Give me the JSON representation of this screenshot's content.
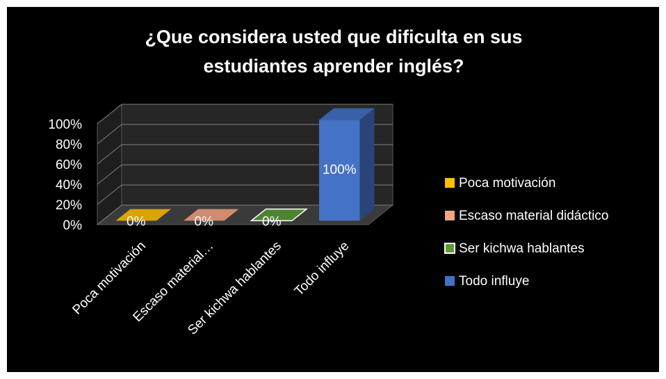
{
  "chart_data": {
    "type": "bar3d",
    "title": "¿Que considera usted que dificulta en sus estudiantes aprender inglés?",
    "categories": [
      "Poca motivación",
      "Escaso material…",
      "Ser kichwa hablantes",
      "Todo influye"
    ],
    "values": [
      0,
      0,
      0,
      100
    ],
    "value_labels": [
      "0%",
      "0%",
      "0%",
      "100%"
    ],
    "colors": [
      "#ffc000",
      "#f4a582",
      "#5b9b3a",
      "#4472c4"
    ],
    "legend": {
      "position": "right",
      "entries": [
        "Poca motivación",
        "Escaso material didáctico",
        "Ser kichwa hablantes",
        "Todo influye"
      ]
    },
    "ylim": [
      0,
      100
    ],
    "yticks": [
      {
        "value": 0,
        "label": "0%"
      },
      {
        "value": 20,
        "label": "20%"
      },
      {
        "value": 40,
        "label": "40%"
      },
      {
        "value": 60,
        "label": "60%"
      },
      {
        "value": 80,
        "label": "80%"
      },
      {
        "value": 100,
        "label": "100%"
      }
    ],
    "grid": true
  }
}
